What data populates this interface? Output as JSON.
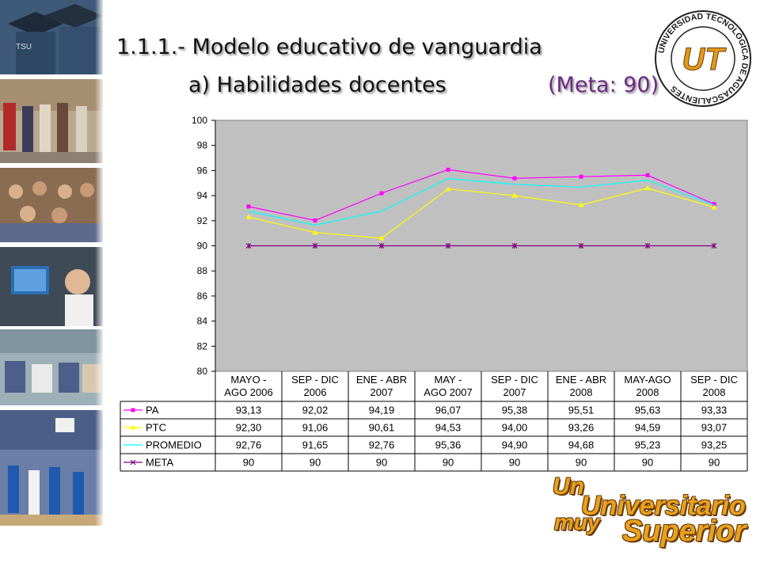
{
  "title": {
    "main": "1.1.1.- Modelo educativo de vanguardia",
    "sub": "a) Habilidades docentes",
    "meta": "(Meta: 90)"
  },
  "logo": {
    "ring_text": "UNIVERSIDAD TECNOLÓGICA DE AGUASCALIENTES",
    "mark": "UT"
  },
  "slogan": {
    "un": "Un",
    "universitario": "Universitario",
    "muy": "muy",
    "superior": "Superior"
  },
  "photos": {
    "cap_text": "TSU"
  },
  "colors": {
    "plot_bg": "#c0c0c0",
    "PA": "#ff00ff",
    "PTC": "#ffff00",
    "PROMEDIO": "#00ffff",
    "META": "#800080",
    "slogan": "#e9a01e"
  },
  "chart_data": {
    "type": "line",
    "categories": [
      [
        "MAYO -",
        "AGO 2006"
      ],
      [
        "SEP - DIC",
        "2006"
      ],
      [
        "ENE - ABR",
        "2007"
      ],
      [
        "MAY -",
        "AGO 2007"
      ],
      [
        "SEP - DIC",
        "2007"
      ],
      [
        "ENE - ABR",
        "2008"
      ],
      [
        "MAY-AGO",
        "2008"
      ],
      [
        "SEP - DIC",
        "2008"
      ]
    ],
    "ylim": [
      80,
      100
    ],
    "yticks": [
      "80",
      "82",
      "84",
      "86",
      "88",
      "90",
      "92",
      "94",
      "96",
      "98",
      "100"
    ],
    "grid": false,
    "legend": "data-table",
    "series": [
      {
        "name": "PA",
        "marker": "square",
        "values": [
          93.13,
          92.02,
          94.19,
          96.07,
          95.38,
          95.51,
          95.63,
          93.33
        ],
        "labels": [
          "93,13",
          "92,02",
          "94,19",
          "96,07",
          "95,38",
          "95,51",
          "95,63",
          "93,33"
        ]
      },
      {
        "name": "PTC",
        "marker": "triangle",
        "values": [
          92.3,
          91.06,
          90.61,
          94.53,
          94.0,
          93.26,
          94.59,
          93.07
        ],
        "labels": [
          "92,30",
          "91,06",
          "90,61",
          "94,53",
          "94,00",
          "93,26",
          "94,59",
          "93,07"
        ]
      },
      {
        "name": "PROMEDIO",
        "marker": "none",
        "values": [
          92.76,
          91.65,
          92.76,
          95.36,
          94.9,
          94.68,
          95.23,
          93.25
        ],
        "labels": [
          "92,76",
          "91,65",
          "92,76",
          "95,36",
          "94,90",
          "94,68",
          "95,23",
          "93,25"
        ]
      },
      {
        "name": "META",
        "marker": "star",
        "values": [
          90,
          90,
          90,
          90,
          90,
          90,
          90,
          90
        ],
        "labels": [
          "90",
          "90",
          "90",
          "90",
          "90",
          "90",
          "90",
          "90"
        ]
      }
    ]
  }
}
